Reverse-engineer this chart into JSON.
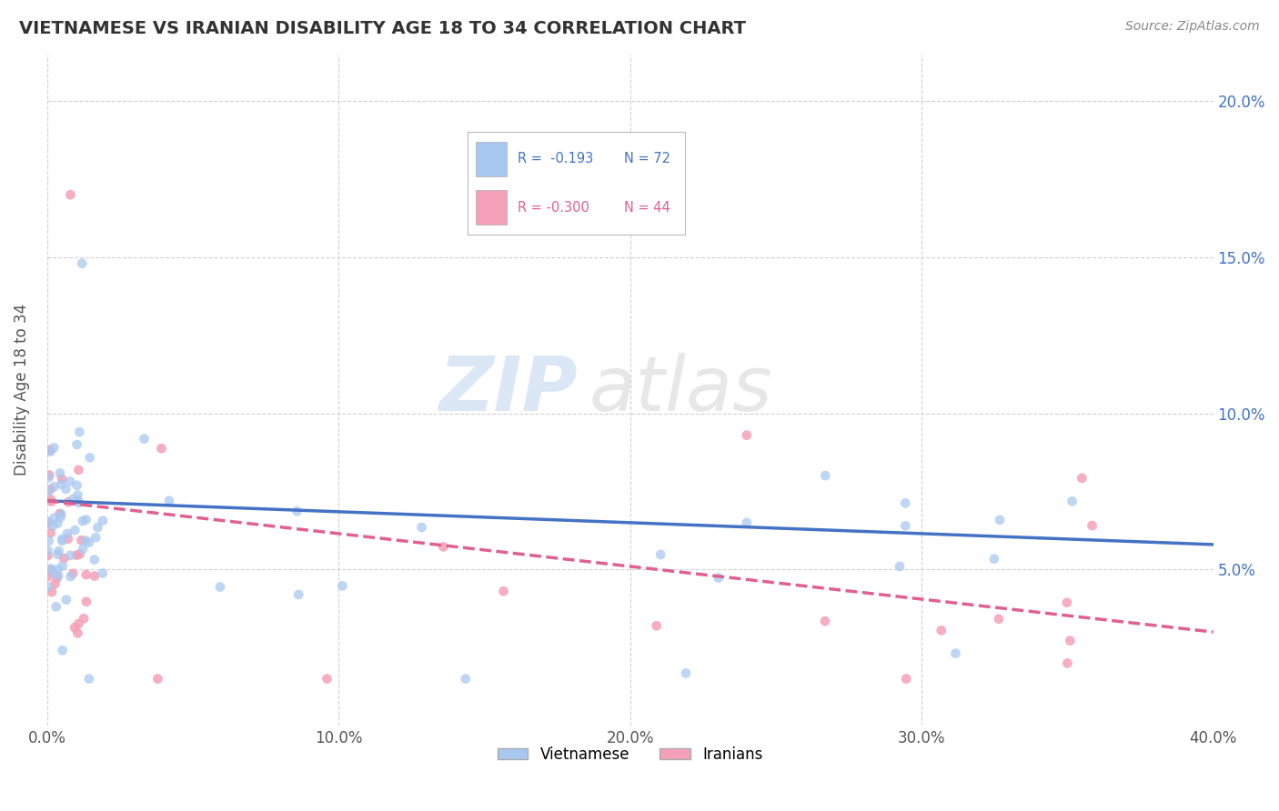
{
  "title": "VIETNAMESE VS IRANIAN DISABILITY AGE 18 TO 34 CORRELATION CHART",
  "source_text": "Source: ZipAtlas.com",
  "ylabel": "Disability Age 18 to 34",
  "xlim": [
    0.0,
    0.4
  ],
  "ylim": [
    0.0,
    0.215
  ],
  "xtick_labels": [
    "0.0%",
    "10.0%",
    "20.0%",
    "30.0%",
    "40.0%"
  ],
  "xtick_vals": [
    0.0,
    0.1,
    0.2,
    0.3,
    0.4
  ],
  "ytick_labels": [
    "5.0%",
    "10.0%",
    "15.0%",
    "20.0%"
  ],
  "ytick_vals": [
    0.05,
    0.1,
    0.15,
    0.2
  ],
  "legend_R1": "R =  -0.193",
  "legend_N1": "N = 72",
  "legend_R2": "R = -0.300",
  "legend_N2": "N = 44",
  "viet_color": "#A8C8F0",
  "iran_color": "#F4A0B8",
  "viet_line_color": "#4472C4",
  "iran_line_color": "#E06090",
  "watermark_zip": "ZIP",
  "watermark_atlas": "atlas",
  "background_color": "#FFFFFF",
  "grid_color": "#CCCCCC",
  "right_tick_color": "#4472C4",
  "viet_line_start_y": 0.072,
  "viet_line_end_y": 0.058,
  "iran_line_start_y": 0.072,
  "iran_line_end_y": 0.03
}
